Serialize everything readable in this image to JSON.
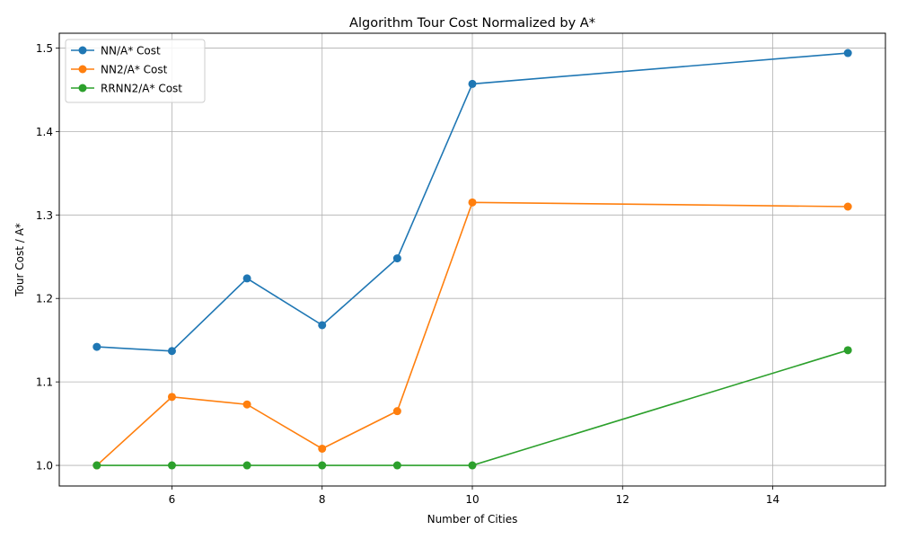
{
  "chart_data": {
    "type": "line",
    "title": "Algorithm Tour Cost Normalized by A*",
    "xlabel": "Number of Cities",
    "ylabel": "Tour Cost / A*",
    "x": [
      5,
      6,
      7,
      8,
      9,
      10,
      15
    ],
    "xlim": [
      4.5,
      15.5
    ],
    "ylim": [
      0.9753,
      1.5177
    ],
    "xticks": [
      6,
      8,
      10,
      12,
      14
    ],
    "yticks": [
      1.0,
      1.1,
      1.2,
      1.3,
      1.4,
      1.5
    ],
    "xtick_labels": [
      "6",
      "8",
      "10",
      "12",
      "14"
    ],
    "ytick_labels": [
      "1.0",
      "1.1",
      "1.2",
      "1.3",
      "1.4",
      "1.5"
    ],
    "grid": true,
    "legend_position": "top-left",
    "series": [
      {
        "name": "NN/A* Cost",
        "color": "#1f77b4",
        "values": [
          1.142,
          1.137,
          1.224,
          1.168,
          1.248,
          1.457,
          1.494
        ]
      },
      {
        "name": "NN2/A* Cost",
        "color": "#ff7f0e",
        "values": [
          1.0,
          1.082,
          1.073,
          1.02,
          1.065,
          1.315,
          1.31
        ]
      },
      {
        "name": "RRNN2/A* Cost",
        "color": "#2ca02c",
        "values": [
          1.0,
          1.0,
          1.0,
          1.0,
          1.0,
          1.0,
          1.138
        ]
      }
    ]
  }
}
